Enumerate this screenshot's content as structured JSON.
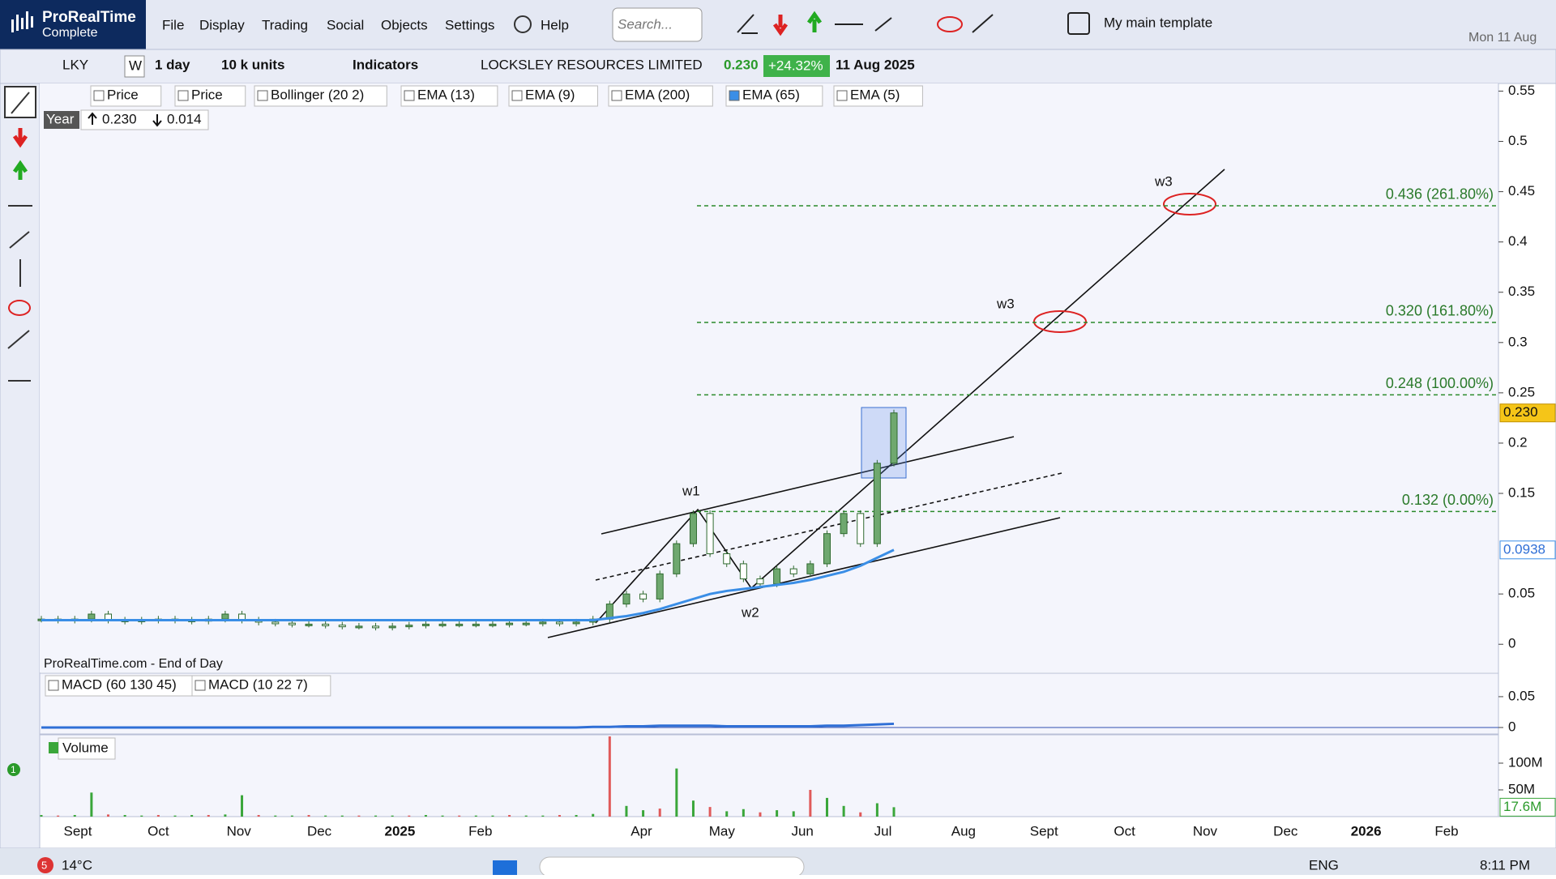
{
  "app": {
    "brand": "ProRealTime",
    "edition": "Complete",
    "menu": [
      "File",
      "Display",
      "Trading",
      "Social",
      "Objects",
      "Settings"
    ],
    "help": "Help",
    "search_placeholder": "Search...",
    "template": "My main template",
    "date": "Mon 11 Aug"
  },
  "toolbar": {
    "ticker": "LKY",
    "w": "W",
    "period": "1 day",
    "units": "10 k units",
    "indicators": "Indicators",
    "instrument": "LOCKSLEY RESOURCES LIMITED",
    "last": "0.230",
    "change": "+24.32%",
    "date": "11 Aug 2025"
  },
  "chart_data": [
    {
      "type": "candlestick",
      "indicators": [
        "Price",
        "Price",
        "Bollinger (20 2)",
        "EMA (13)",
        "EMA (9)",
        "EMA (200)",
        "EMA (65)",
        "EMA (5)"
      ],
      "period_label": "Year",
      "high": {
        "value": 0.23,
        "label": "0.230"
      },
      "low": 0.014,
      "source": "ProRealTime.com - End of Day",
      "series": [
        {
          "name": "Price",
          "color": "#2f6a2f",
          "values": [
            0.025,
            0.024,
            0.025,
            0.03,
            0.024,
            0.023,
            0.024,
            0.025,
            0.024,
            0.023,
            0.025,
            0.03,
            0.024,
            0.022,
            0.021,
            0.02,
            0.02,
            0.019,
            0.018,
            0.018,
            0.017,
            0.018,
            0.019,
            0.02,
            0.02,
            0.02,
            0.02,
            0.02,
            0.021,
            0.021,
            0.022,
            0.021,
            0.022,
            0.025,
            0.04,
            0.05,
            0.045,
            0.07,
            0.1,
            0.13,
            0.09,
            0.08,
            0.065,
            0.06,
            0.075,
            0.07,
            0.08,
            0.11,
            0.13,
            0.1,
            0.18,
            0.23
          ]
        },
        {
          "name": "EMA (65)",
          "color": "#3a8ee6",
          "values": [
            0.024,
            0.024,
            0.024,
            0.024,
            0.024,
            0.024,
            0.024,
            0.024,
            0.024,
            0.024,
            0.024,
            0.024,
            0.024,
            0.024,
            0.024,
            0.024,
            0.024,
            0.024,
            0.024,
            0.024,
            0.024,
            0.024,
            0.024,
            0.024,
            0.024,
            0.024,
            0.024,
            0.024,
            0.024,
            0.024,
            0.024,
            0.024,
            0.024,
            0.024,
            0.026,
            0.028,
            0.031,
            0.035,
            0.04,
            0.045,
            0.05,
            0.053,
            0.055,
            0.057,
            0.059,
            0.061,
            0.064,
            0.068,
            0.072,
            0.078,
            0.086,
            0.0938
          ]
        }
      ],
      "ylim": [
        -0.028,
        0.556
      ],
      "yticks": [
        0,
        0.05,
        0.15,
        0.2,
        0.25,
        0.3,
        0.35,
        0.4,
        0.45,
        0.5,
        0.55
      ],
      "last_value": {
        "value": 0.23,
        "label": "0.230"
      },
      "ema_value": {
        "value": 0.0938,
        "label": "0.0938"
      },
      "fib_levels": [
        {
          "value": 0.436,
          "label": "0.436 (261.80%)"
        },
        {
          "value": 0.32,
          "label": "0.320 (161.80%)"
        },
        {
          "value": 0.248,
          "label": "0.248 (100.00%)"
        },
        {
          "value": 0.132,
          "label": "0.132 (0.00%)"
        }
      ],
      "annotations": [
        "w1",
        "w2",
        "w3",
        "w3"
      ],
      "x_labels": [
        "Sept",
        "Oct",
        "Nov",
        "Dec",
        "2025",
        "Feb",
        null,
        "Apr",
        "May",
        "Jun",
        "Jul",
        "Aug",
        "Sept",
        "Oct",
        "Nov",
        "Dec",
        "2026",
        "Feb"
      ]
    },
    {
      "type": "line",
      "indicators": [
        "MACD (60 130 45)",
        "MACD (10 22 7)"
      ],
      "series": [
        {
          "name": "MACD (60 130 45)",
          "color": "#2f6fd6",
          "values": [
            0,
            0,
            0,
            0,
            0,
            0,
            0,
            0,
            0,
            0,
            0,
            0,
            0,
            0,
            0,
            0,
            0,
            0,
            0,
            0,
            0,
            0,
            0,
            0,
            0,
            0,
            0,
            0,
            0,
            0,
            0,
            0,
            0,
            0.001,
            0.001,
            0.002,
            0.002,
            0.003,
            0.003,
            0.003,
            0.003,
            0.002,
            0.002,
            0.002,
            0.002,
            0.002,
            0.002,
            0.003,
            0.003,
            0.004,
            0.005,
            0.006
          ]
        }
      ],
      "ylim": [
        -0.0105,
        0.088
      ],
      "yticks": [
        0,
        0.05
      ]
    },
    {
      "type": "bar",
      "title": "Volume",
      "color": "#3aa63a",
      "values": [
        3,
        2,
        3,
        45,
        4,
        3,
        2,
        3,
        2,
        3,
        3,
        4,
        40,
        3,
        2,
        2,
        3,
        2,
        2,
        2,
        2,
        2,
        2,
        3,
        2,
        2,
        2,
        2,
        3,
        2,
        2,
        3,
        3,
        5,
        150,
        20,
        12,
        15,
        90,
        30,
        18,
        10,
        14,
        8,
        12,
        10,
        50,
        35,
        20,
        8,
        25,
        17.6
      ],
      "ylim": [
        0,
        150
      ],
      "yticks": [
        {
          "value": 50,
          "label": "50M"
        },
        {
          "value": 100,
          "label": "100M"
        }
      ],
      "last_value": {
        "value": 17.6,
        "label": "17.6M"
      }
    }
  ],
  "taskbar": {
    "notifications": "5",
    "temperature": "14°C",
    "language": "ENG",
    "time": "8:11 PM",
    "badge": "1"
  }
}
